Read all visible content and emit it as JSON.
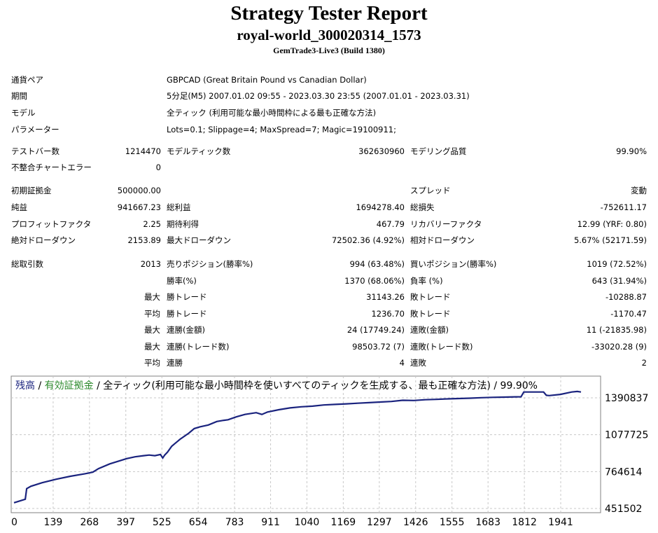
{
  "header": {
    "title": "Strategy Tester Report",
    "subtitle": "royal-world_300020314_1573",
    "build": "GemTrade3-Live3 (Build 1380)"
  },
  "info": [
    {
      "label": "通貨ペア",
      "value": "GBPCAD (Great Britain Pound vs Canadian Dollar)"
    },
    {
      "label": "期間",
      "value": "5分足(M5) 2007.01.02 09:55 - 2023.03.30 23:55 (2007.01.01 - 2023.03.31)"
    },
    {
      "label": "モデル",
      "value": "全ティック (利用可能な最小時間枠による最も正確な方法)"
    },
    {
      "label": "パラメーター",
      "value": "Lots=0.1; Slippage=4; MaxSpread=7; Magic=19100911;"
    }
  ],
  "stats": {
    "test_bars": {
      "label": "テストバー数",
      "value": "1214470"
    },
    "model_ticks": {
      "label": "モデルティック数",
      "value": "362630960"
    },
    "modeling_quality": {
      "label": "モデリング品質",
      "value": "99.90%"
    },
    "mismatch_errors": {
      "label": "不整合チャートエラー",
      "value": "0"
    },
    "initial_deposit": {
      "label": "初期証拠金",
      "value": "500000.00"
    },
    "spread": {
      "label": "スプレッド",
      "value": "変動"
    },
    "net_profit": {
      "label": "純益",
      "value": "941667.23"
    },
    "gross_profit": {
      "label": "総利益",
      "value": "1694278.40"
    },
    "gross_loss": {
      "label": "総損失",
      "value": "-752611.17"
    },
    "profit_factor": {
      "label": "プロフィットファクタ",
      "value": "2.25"
    },
    "expected_payoff": {
      "label": "期待利得",
      "value": "467.79"
    },
    "recovery_factor": {
      "label": "リカバリーファクタ",
      "value": "12.99 (YRF: 0.80)"
    },
    "abs_drawdown": {
      "label": "絶対ドローダウン",
      "value": "2153.89"
    },
    "max_drawdown": {
      "label": "最大ドローダウン",
      "value": "72502.36 (4.92%)"
    },
    "rel_drawdown": {
      "label": "相対ドローダウン",
      "value": "5.67% (52171.59)"
    },
    "total_trades": {
      "label": "総取引数",
      "value": "2013"
    },
    "short_positions": {
      "label": "売りポジション(勝率%)",
      "value": "994 (63.48%)"
    },
    "long_positions": {
      "label": "買いポジション(勝率%)",
      "value": "1019 (72.52%)"
    },
    "win_rate": {
      "label": "勝率(%)",
      "value": "1370 (68.06%)"
    },
    "loss_rate": {
      "label": "負率 (%)",
      "value": "643 (31.94%)"
    },
    "largest_win": {
      "prefix": "最大",
      "label": "勝トレード",
      "value": "31143.26"
    },
    "largest_loss": {
      "label": "敗トレード",
      "value": "-10288.87"
    },
    "avg_win": {
      "prefix": "平均",
      "label": "勝トレード",
      "value": "1236.70"
    },
    "avg_loss": {
      "label": "敗トレード",
      "value": "-1170.47"
    },
    "max_consec_wins_amt": {
      "prefix": "最大",
      "label": "連勝(金額)",
      "value": "24 (17749.24)"
    },
    "max_consec_losses_amt": {
      "label": "連敗(金額)",
      "value": "11 (-21835.98)"
    },
    "max_consec_wins_cnt": {
      "prefix": "最大",
      "label": "連勝(トレード数)",
      "value": "98503.72 (7)"
    },
    "max_consec_losses_cnt": {
      "label": "連敗(トレード数)",
      "value": "-33020.28 (9)"
    },
    "avg_consec_wins": {
      "prefix": "平均",
      "label": "連勝",
      "value": "4"
    },
    "avg_consec_losses": {
      "label": "連敗",
      "value": "2"
    }
  },
  "chart_data": {
    "type": "line",
    "legend": {
      "balance": "残高",
      "sep1": " / ",
      "equity": "有効証拠金",
      "rest": " / 全ティック(利用可能な最小時間枠を使いすべてのティックを生成する、最も正確な方法) / 99.90%"
    },
    "x_ticks": [
      "0",
      "139",
      "268",
      "397",
      "525",
      "654",
      "783",
      "911",
      "1040",
      "1169",
      "1297",
      "1426",
      "1555",
      "1683",
      "1812",
      "1941"
    ],
    "x_tick_values": [
      0,
      139,
      268,
      397,
      525,
      654,
      783,
      911,
      1040,
      1169,
      1297,
      1426,
      1555,
      1683,
      1812,
      1941
    ],
    "y_ticks": [
      "1390837",
      "1077725",
      "764614",
      "451502"
    ],
    "y_tick_values": [
      1390837,
      1077725,
      764614,
      451502
    ],
    "xlim": [
      0,
      2013
    ],
    "ylim": [
      451502,
      1550000
    ],
    "grid": true,
    "colors": {
      "balance": "#1a237e",
      "equity": "#2e8b2e",
      "grid": "#c8c8c8"
    },
    "series": [
      {
        "name": "残高",
        "x": [
          0,
          40,
          45,
          60,
          100,
          150,
          200,
          250,
          280,
          300,
          340,
          380,
          400,
          430,
          460,
          480,
          500,
          520,
          528,
          535,
          545,
          560,
          590,
          620,
          640,
          660,
          690,
          720,
          745,
          760,
          790,
          820,
          860,
          880,
          900,
          940,
          980,
          1020,
          1060,
          1100,
          1140,
          1180,
          1220,
          1260,
          1300,
          1340,
          1380,
          1420,
          1460,
          1500,
          1540,
          1580,
          1620,
          1660,
          1700,
          1740,
          1780,
          1800,
          1810,
          1840,
          1880,
          1890,
          1900,
          1940,
          1980,
          2000,
          2013
        ],
        "y": [
          500000,
          530000,
          620000,
          640000,
          670000,
          700000,
          725000,
          745000,
          760000,
          790000,
          830000,
          860000,
          875000,
          890000,
          900000,
          905000,
          900000,
          910000,
          880000,
          905000,
          930000,
          980000,
          1040000,
          1090000,
          1130000,
          1145000,
          1160000,
          1190000,
          1200000,
          1205000,
          1230000,
          1250000,
          1265000,
          1250000,
          1270000,
          1290000,
          1305000,
          1315000,
          1320000,
          1330000,
          1335000,
          1340000,
          1345000,
          1350000,
          1355000,
          1360000,
          1370000,
          1368000,
          1375000,
          1378000,
          1382000,
          1385000,
          1388000,
          1392000,
          1395000,
          1397000,
          1399000,
          1400000,
          1440000,
          1440000,
          1440000,
          1412000,
          1410000,
          1420000,
          1440000,
          1445000,
          1440000
        ]
      }
    ]
  }
}
